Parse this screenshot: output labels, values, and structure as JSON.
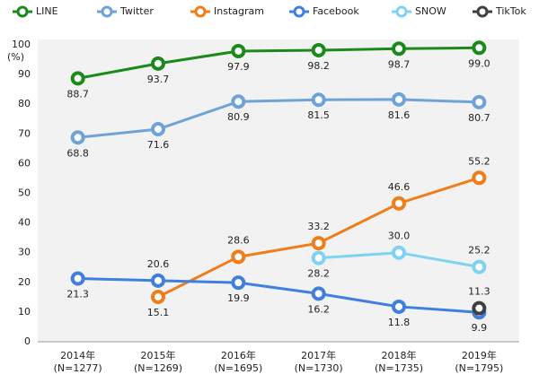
{
  "chart_data": {
    "type": "line",
    "categories": [
      [
        "2014年",
        "(N=1277)"
      ],
      [
        "2015年",
        "(N=1269)"
      ],
      [
        "2016年",
        "(N=1695)"
      ],
      [
        "2017年",
        "(N=1730)"
      ],
      [
        "2018年",
        "(N=1735)"
      ],
      [
        "2019年",
        "(N=1795)"
      ]
    ],
    "y_unit": "(%)",
    "ylim": [
      0,
      100
    ],
    "yticks": [
      0,
      10,
      20,
      30,
      40,
      50,
      60,
      70,
      80,
      90,
      100
    ],
    "grid": false,
    "legend": "top",
    "series": [
      {
        "name": "LINE",
        "color": "#1a8a1a",
        "values": [
          88.7,
          93.7,
          97.9,
          98.2,
          98.7,
          99.0
        ],
        "value_labels": [
          "88.7",
          "93.7",
          "97.9",
          "98.2",
          "98.7",
          "99.0"
        ]
      },
      {
        "name": "Twitter",
        "color": "#6fa3d8",
        "values": [
          68.8,
          71.6,
          80.9,
          81.5,
          81.6,
          80.7
        ],
        "value_labels": [
          "68.8",
          "71.6",
          "80.9",
          "81.5",
          "81.6",
          "80.7"
        ]
      },
      {
        "name": "Instagram",
        "color": "#f07d1a",
        "values": [
          null,
          15.1,
          28.6,
          33.2,
          46.6,
          55.2
        ],
        "value_labels": [
          null,
          "15.1",
          "28.6",
          "33.2",
          "46.6",
          "55.2"
        ]
      },
      {
        "name": "Facebook",
        "color": "#3f7fe0",
        "values": [
          21.3,
          20.6,
          19.9,
          16.2,
          11.8,
          9.9
        ],
        "value_labels": [
          "21.3",
          "20.6",
          "19.9",
          "16.2",
          "11.8",
          "9.9"
        ]
      },
      {
        "name": "SNOW",
        "color": "#7fd3f2",
        "values": [
          null,
          null,
          null,
          28.2,
          30.0,
          25.2
        ],
        "value_labels": [
          null,
          null,
          null,
          "28.2",
          "30.0",
          "25.2"
        ]
      },
      {
        "name": "TikTok",
        "color": "#404040",
        "values": [
          null,
          null,
          null,
          null,
          null,
          11.3
        ],
        "value_labels": [
          null,
          null,
          null,
          null,
          null,
          "11.3"
        ]
      }
    ]
  }
}
